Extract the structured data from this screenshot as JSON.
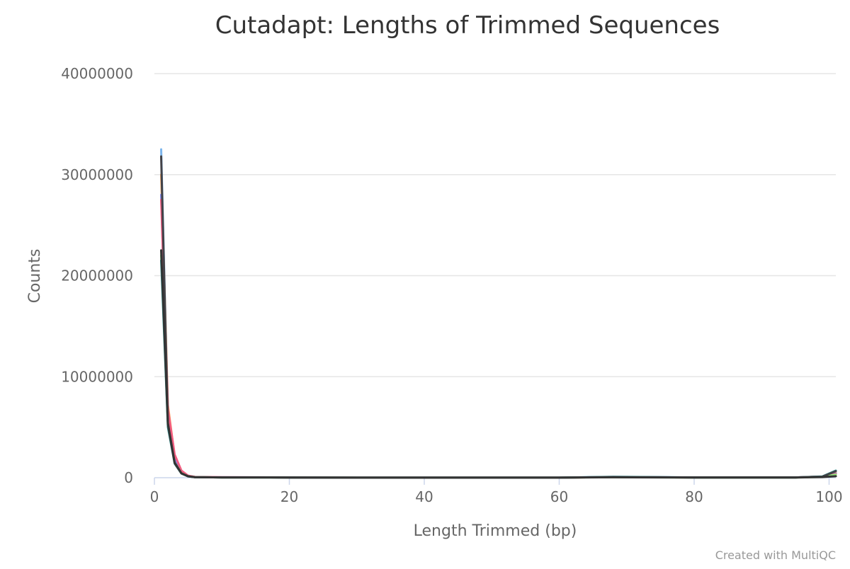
{
  "chart_data": {
    "type": "line",
    "title": "Cutadapt: Lengths of Trimmed Sequences",
    "xlabel": "Length Trimmed (bp)",
    "ylabel": "Counts",
    "xlim": [
      0,
      101
    ],
    "ylim": [
      0,
      40000000
    ],
    "xticks": [
      0,
      20,
      40,
      60,
      80,
      100
    ],
    "yticks": [
      0,
      10000000,
      20000000,
      30000000,
      40000000
    ],
    "grid": true,
    "legend": "none",
    "credit": "Created with MultiQC",
    "series": [
      {
        "color": "#7cb5ec",
        "points": [
          [
            1,
            32500000
          ],
          [
            2,
            6000000
          ],
          [
            3,
            1700000
          ],
          [
            4,
            500000
          ],
          [
            5,
            150000
          ],
          [
            6,
            60000
          ],
          [
            10,
            40000
          ],
          [
            20,
            30000
          ],
          [
            30,
            10000
          ],
          [
            60,
            10000
          ],
          [
            68,
            80000
          ],
          [
            80,
            30000
          ],
          [
            95,
            30000
          ],
          [
            99,
            100000
          ],
          [
            101,
            500000
          ]
        ]
      },
      {
        "color": "#f7a35c",
        "points": [
          [
            1,
            30000000
          ],
          [
            2,
            7200000
          ],
          [
            3,
            2100000
          ],
          [
            4,
            600000
          ],
          [
            5,
            180000
          ],
          [
            6,
            70000
          ],
          [
            10,
            40000
          ],
          [
            20,
            30000
          ],
          [
            30,
            10000
          ],
          [
            60,
            10000
          ],
          [
            68,
            60000
          ],
          [
            80,
            30000
          ],
          [
            95,
            30000
          ],
          [
            99,
            100000
          ],
          [
            101,
            450000
          ]
        ]
      },
      {
        "color": "#8085e9",
        "points": [
          [
            1,
            28000000
          ],
          [
            2,
            6500000
          ],
          [
            3,
            1900000
          ],
          [
            4,
            550000
          ],
          [
            5,
            160000
          ],
          [
            6,
            60000
          ],
          [
            10,
            40000
          ],
          [
            20,
            30000
          ],
          [
            30,
            10000
          ],
          [
            60,
            10000
          ],
          [
            68,
            70000
          ],
          [
            80,
            30000
          ],
          [
            95,
            30000
          ],
          [
            99,
            100000
          ],
          [
            101,
            400000
          ]
        ]
      },
      {
        "color": "#f15c80",
        "points": [
          [
            1,
            27500000
          ],
          [
            2,
            6800000
          ],
          [
            3,
            2300000
          ],
          [
            4,
            700000
          ],
          [
            5,
            200000
          ],
          [
            6,
            80000
          ],
          [
            10,
            40000
          ],
          [
            20,
            30000
          ],
          [
            30,
            10000
          ],
          [
            60,
            10000
          ],
          [
            68,
            60000
          ],
          [
            80,
            30000
          ],
          [
            95,
            30000
          ],
          [
            99,
            100000
          ],
          [
            101,
            350000
          ]
        ]
      },
      {
        "color": "#90ed7d",
        "points": [
          [
            1,
            22000000
          ],
          [
            2,
            5200000
          ],
          [
            3,
            1500000
          ],
          [
            4,
            450000
          ],
          [
            5,
            140000
          ],
          [
            6,
            50000
          ],
          [
            10,
            30000
          ],
          [
            20,
            20000
          ],
          [
            30,
            10000
          ],
          [
            60,
            10000
          ],
          [
            68,
            50000
          ],
          [
            80,
            20000
          ],
          [
            95,
            20000
          ],
          [
            99,
            80000
          ],
          [
            101,
            300000
          ]
        ]
      },
      {
        "color": "#2b908f",
        "points": [
          [
            1,
            21500000
          ],
          [
            2,
            5000000
          ],
          [
            3,
            1400000
          ],
          [
            4,
            420000
          ],
          [
            5,
            130000
          ],
          [
            6,
            50000
          ],
          [
            10,
            30000
          ],
          [
            20,
            20000
          ],
          [
            30,
            10000
          ],
          [
            60,
            10000
          ],
          [
            68,
            90000
          ],
          [
            80,
            30000
          ],
          [
            95,
            30000
          ],
          [
            99,
            120000
          ],
          [
            101,
            700000
          ]
        ]
      },
      {
        "color": "#434348",
        "points": [
          [
            1,
            31800000
          ],
          [
            2,
            5400000
          ],
          [
            3,
            1500000
          ],
          [
            4,
            440000
          ],
          [
            5,
            140000
          ],
          [
            6,
            50000
          ],
          [
            10,
            30000
          ],
          [
            20,
            20000
          ],
          [
            30,
            10000
          ],
          [
            60,
            10000
          ],
          [
            68,
            60000
          ],
          [
            80,
            30000
          ],
          [
            95,
            30000
          ],
          [
            99,
            100000
          ],
          [
            101,
            650000
          ]
        ]
      },
      {
        "color": "#333333",
        "points": [
          [
            1,
            22500000
          ],
          [
            2,
            5300000
          ],
          [
            3,
            1450000
          ],
          [
            4,
            430000
          ],
          [
            5,
            135000
          ],
          [
            6,
            50000
          ],
          [
            10,
            30000
          ],
          [
            20,
            20000
          ],
          [
            30,
            10000
          ],
          [
            60,
            10000
          ],
          [
            68,
            40000
          ],
          [
            80,
            20000
          ],
          [
            95,
            20000
          ],
          [
            99,
            60000
          ],
          [
            101,
            150000
          ]
        ]
      }
    ]
  }
}
